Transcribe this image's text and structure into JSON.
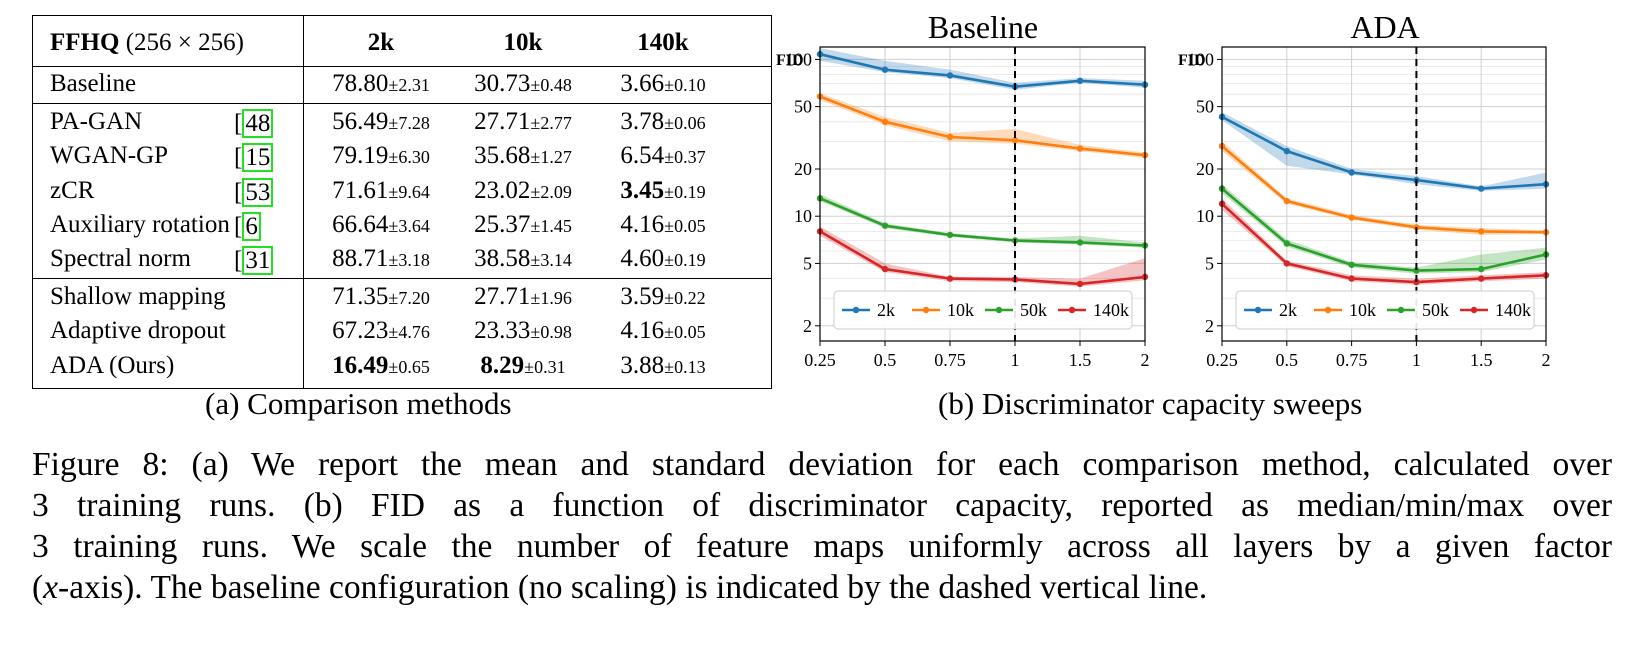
{
  "table": {
    "header": {
      "dataset": "FFHQ",
      "resolution": "(256 × 256)",
      "columns": [
        "2k",
        "10k",
        "140k"
      ]
    },
    "groups": [
      [
        {
          "name": "Baseline",
          "ref": "",
          "values": [
            {
              "mean": "78.80",
              "std": "2.31",
              "bold": false
            },
            {
              "mean": "30.73",
              "std": "0.48",
              "bold": false
            },
            {
              "mean": "3.66",
              "std": "0.10",
              "bold": false
            }
          ]
        }
      ],
      [
        {
          "name": "PA-GAN",
          "ref": "48",
          "values": [
            {
              "mean": "56.49",
              "std": "7.28",
              "bold": false
            },
            {
              "mean": "27.71",
              "std": "2.77",
              "bold": false
            },
            {
              "mean": "3.78",
              "std": "0.06",
              "bold": false
            }
          ]
        },
        {
          "name": "WGAN-GP",
          "ref": "15",
          "values": [
            {
              "mean": "79.19",
              "std": "6.30",
              "bold": false
            },
            {
              "mean": "35.68",
              "std": "1.27",
              "bold": false
            },
            {
              "mean": "6.54",
              "std": "0.37",
              "bold": false
            }
          ]
        },
        {
          "name": "zCR",
          "ref": "53",
          "values": [
            {
              "mean": "71.61",
              "std": "9.64",
              "bold": false
            },
            {
              "mean": "23.02",
              "std": "2.09",
              "bold": false
            },
            {
              "mean": "3.45",
              "std": "0.19",
              "bold": true
            }
          ]
        },
        {
          "name": "Auxiliary rotation",
          "ref": "6",
          "values": [
            {
              "mean": "66.64",
              "std": "3.64",
              "bold": false
            },
            {
              "mean": "25.37",
              "std": "1.45",
              "bold": false
            },
            {
              "mean": "4.16",
              "std": "0.05",
              "bold": false
            }
          ]
        },
        {
          "name": "Spectral norm",
          "ref": "31",
          "values": [
            {
              "mean": "88.71",
              "std": "3.18",
              "bold": false
            },
            {
              "mean": "38.58",
              "std": "3.14",
              "bold": false
            },
            {
              "mean": "4.60",
              "std": "0.19",
              "bold": false
            }
          ]
        }
      ],
      [
        {
          "name": "Shallow mapping",
          "ref": "",
          "values": [
            {
              "mean": "71.35",
              "std": "7.20",
              "bold": false
            },
            {
              "mean": "27.71",
              "std": "1.96",
              "bold": false
            },
            {
              "mean": "3.59",
              "std": "0.22",
              "bold": false
            }
          ]
        },
        {
          "name": "Adaptive dropout",
          "ref": "",
          "values": [
            {
              "mean": "67.23",
              "std": "4.76",
              "bold": false
            },
            {
              "mean": "23.33",
              "std": "0.98",
              "bold": false
            },
            {
              "mean": "4.16",
              "std": "0.05",
              "bold": false
            }
          ]
        },
        {
          "name": "ADA (Ours)",
          "ref": "",
          "values": [
            {
              "mean": "16.49",
              "std": "0.65",
              "bold": true
            },
            {
              "mean": "8.29",
              "std": "0.31",
              "bold": true
            },
            {
              "mean": "3.88",
              "std": "0.13",
              "bold": false
            }
          ]
        }
      ]
    ]
  },
  "subcaptions": {
    "a": "(a) Comparison methods",
    "b": "(b) Discriminator capacity sweeps"
  },
  "caption": {
    "line1": "Figure 8: (a) We report the mean and standard deviation for each comparison method, calculated over",
    "line2": "3 training runs. (b) FID as a function of discriminator capacity, reported as median/min/max over",
    "line3": "3 training runs. We scale the number of feature maps uniformly across all layers by a given factor",
    "line4_var": "x",
    "line4_rest": "-axis). The baseline configuration (no scaling) is indicated by the dashed vertical line."
  },
  "chart_data": [
    {
      "type": "line",
      "title": "Baseline",
      "ylabel": "FID",
      "yscale": "log",
      "ylim": [
        1.6,
        120
      ],
      "yticks": [
        2,
        5,
        10,
        20,
        50,
        100
      ],
      "x": [
        0.25,
        0.5,
        0.75,
        1,
        1.5,
        2
      ],
      "xtick_labels": [
        "0.25",
        "0.5",
        "0.75",
        "1",
        "1.5",
        "2"
      ],
      "baseline_x": 1,
      "grid": true,
      "legend_position": "lower-center",
      "series": [
        {
          "name": "2k",
          "color": "#1f77b4",
          "values": [
            108,
            86,
            79,
            67,
            73,
            69
          ],
          "min": [
            98,
            83,
            76,
            64,
            71,
            66
          ],
          "max": [
            118,
            98,
            86,
            71,
            76,
            73
          ]
        },
        {
          "name": "10k",
          "color": "#ff7f0e",
          "values": [
            58,
            40,
            32,
            30.5,
            27,
            24.5
          ],
          "min": [
            55,
            38,
            30,
            29,
            26,
            23.5
          ],
          "max": [
            61,
            43,
            34,
            36,
            28.5,
            25.5
          ]
        },
        {
          "name": "50k",
          "color": "#2ca02c",
          "values": [
            13,
            8.7,
            7.6,
            7.0,
            6.8,
            6.5
          ],
          "min": [
            12.5,
            8.4,
            7.4,
            6.8,
            6.6,
            6.3
          ],
          "max": [
            13.8,
            9.0,
            7.8,
            7.2,
            7.5,
            6.8
          ]
        },
        {
          "name": "140k",
          "color": "#d62728",
          "values": [
            8.0,
            4.6,
            4.0,
            3.95,
            3.7,
            4.1
          ],
          "min": [
            7.5,
            4.4,
            3.85,
            3.8,
            3.55,
            3.9
          ],
          "max": [
            8.6,
            5.0,
            4.1,
            4.1,
            4.0,
            5.4
          ]
        }
      ]
    },
    {
      "type": "line",
      "title": "ADA",
      "ylabel": "FID",
      "yscale": "log",
      "ylim": [
        1.6,
        120
      ],
      "yticks": [
        2,
        5,
        10,
        20,
        50,
        100
      ],
      "x": [
        0.25,
        0.5,
        0.75,
        1,
        1.5,
        2
      ],
      "xtick_labels": [
        "0.25",
        "0.5",
        "0.75",
        "1",
        "1.5",
        "2"
      ],
      "baseline_x": 1,
      "grid": true,
      "legend_position": "lower-center",
      "series": [
        {
          "name": "2k",
          "color": "#1f77b4",
          "values": [
            43,
            26,
            19,
            17,
            15,
            16
          ],
          "min": [
            41,
            21,
            18.5,
            16,
            14.5,
            15
          ],
          "max": [
            46,
            28,
            20,
            18,
            15.5,
            19
          ]
        },
        {
          "name": "10k",
          "color": "#ff7f0e",
          "values": [
            28,
            12.5,
            9.8,
            8.5,
            8.0,
            7.9
          ],
          "min": [
            26,
            12,
            9.5,
            8.2,
            7.6,
            7.7
          ],
          "max": [
            30,
            13,
            10.2,
            8.8,
            8.4,
            8.1
          ]
        },
        {
          "name": "50k",
          "color": "#2ca02c",
          "values": [
            15,
            6.7,
            4.9,
            4.5,
            4.6,
            5.7
          ],
          "min": [
            14,
            6.4,
            4.7,
            4.3,
            4.4,
            5.3
          ],
          "max": [
            16,
            7.1,
            5.1,
            4.7,
            5.7,
            6.3
          ]
        },
        {
          "name": "140k",
          "color": "#d62728",
          "values": [
            12,
            5.0,
            4.0,
            3.8,
            4.0,
            4.2
          ],
          "min": [
            11,
            4.8,
            3.85,
            3.65,
            3.85,
            4.0
          ],
          "max": [
            13,
            5.2,
            4.2,
            4.0,
            4.2,
            4.4
          ]
        }
      ]
    }
  ]
}
